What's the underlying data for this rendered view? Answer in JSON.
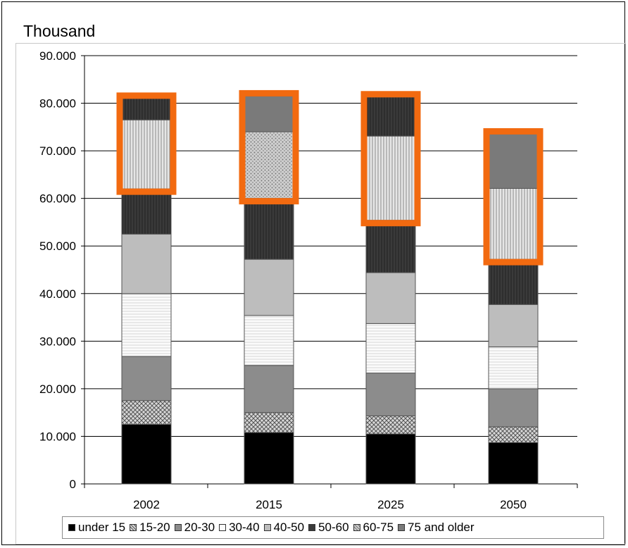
{
  "unit_label": "Thousand",
  "colors": {
    "highlight": "#f26a10",
    "under15": "#000000",
    "15-20": "#bbbbbb",
    "20-30": "#8c8c8c",
    "30-40": "#f4f4f4",
    "40-50": "#bdbdbd",
    "50-60": "#3a3a3a",
    "60-75": "#d0d0d0",
    "75plus": "#7a7a7a"
  },
  "chart_data": {
    "type": "bar",
    "stacked": true,
    "categories": [
      "2002",
      "2015",
      "2025",
      "2050"
    ],
    "ylim": [
      0,
      90000
    ],
    "yticks": [
      "0",
      "10.000",
      "20.000",
      "30.000",
      "40.000",
      "50.000",
      "60.000",
      "70.000",
      "80.000",
      "90.000"
    ],
    "ytick_values": [
      0,
      10000,
      20000,
      30000,
      40000,
      50000,
      60000,
      70000,
      80000,
      90000
    ],
    "grid": true,
    "legend_position": "bottom",
    "series": [
      {
        "name": "under 15",
        "values": [
          12500,
          10800,
          10500,
          8700
        ],
        "pattern": "solid-black"
      },
      {
        "name": "15-20",
        "values": [
          5000,
          4200,
          3800,
          3300
        ],
        "pattern": "crosshatch"
      },
      {
        "name": "20-30",
        "values": [
          9300,
          9900,
          9000,
          8000
        ],
        "pattern": "solid-gray"
      },
      {
        "name": "30-40",
        "values": [
          13200,
          10500,
          10400,
          8800
        ],
        "pattern": "light-hlines"
      },
      {
        "name": "40-50",
        "values": [
          12500,
          11800,
          10700,
          8900
        ],
        "pattern": "solid-lightgray"
      },
      {
        "name": "50-60",
        "values": [
          9500,
          12800,
          11000,
          9500
        ],
        "pattern": "dark-vlines"
      },
      {
        "name": "60-75",
        "values": [
          14500,
          14000,
          17700,
          14900
        ],
        "pattern": "dotted"
      },
      {
        "name": "75 and older",
        "values": [
          4500,
          7500,
          8200,
          11400
        ],
        "pattern": "vlines"
      }
    ],
    "highlighted_segments": {
      "comment_free": true,
      "categories": [
        "2002",
        "2015",
        "2025",
        "2050"
      ],
      "series": [
        "60-75",
        "75 and older"
      ]
    }
  }
}
